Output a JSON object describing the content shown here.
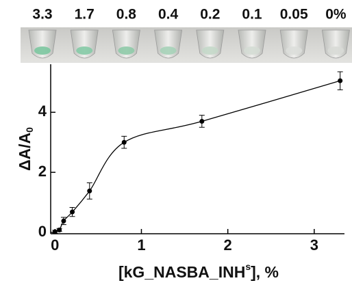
{
  "photo": {
    "labels": [
      "3.3",
      "1.7",
      "0.8",
      "0.4",
      "0.2",
      "0.1",
      "0.05",
      "0%"
    ]
  },
  "chart_data": {
    "type": "line",
    "x": [
      0,
      0.05,
      0.1,
      0.2,
      0.4,
      0.8,
      1.7,
      3.3
    ],
    "values": [
      0.02,
      0.08,
      0.38,
      0.68,
      1.38,
      3.0,
      3.7,
      5.05
    ],
    "errors": [
      0.05,
      0.05,
      0.12,
      0.15,
      0.27,
      0.2,
      0.2,
      0.3
    ],
    "color": "#000000",
    "xlim": [
      -0.05,
      3.35
    ],
    "ylim": [
      0,
      5.6
    ],
    "xticks": [
      0,
      1,
      2,
      3
    ],
    "yticks": [
      0,
      2,
      4
    ],
    "xlabel": [
      "[kG_NASBA_INH",
      "s",
      "], %"
    ],
    "ylabel": [
      "ΔA/A",
      "0"
    ]
  }
}
